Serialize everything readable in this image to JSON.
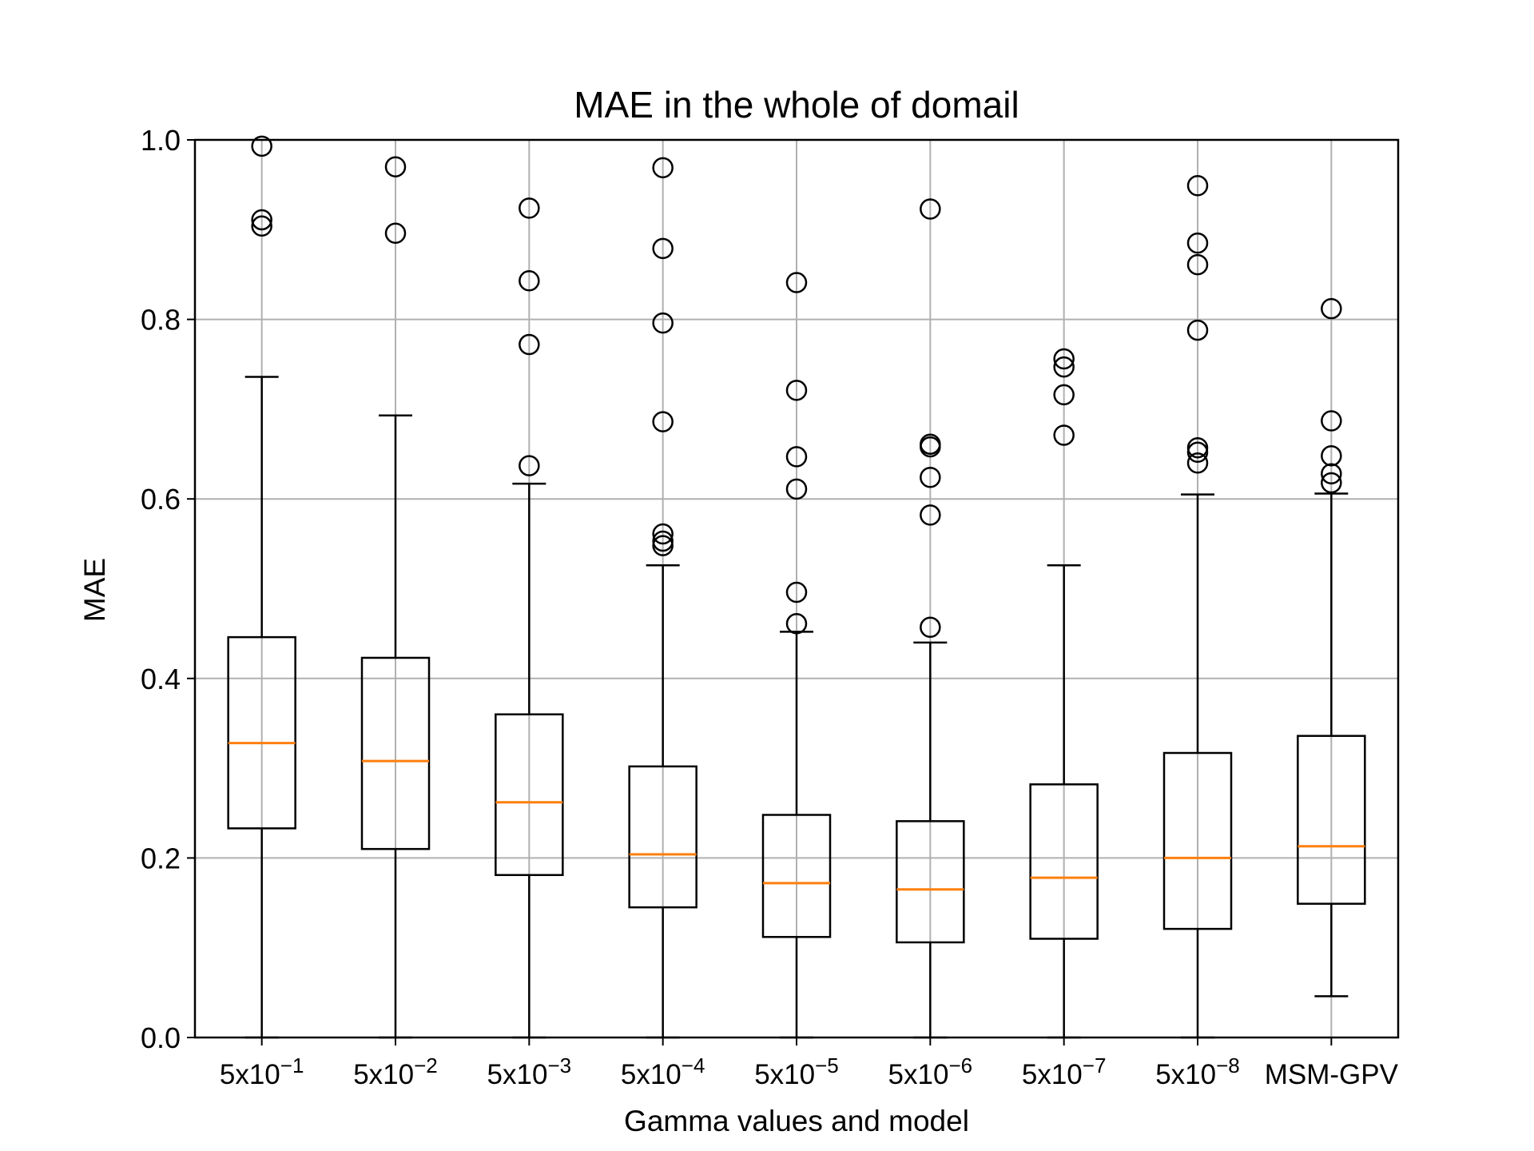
{
  "chart_data": {
    "type": "boxplot",
    "title": "MAE in the whole of domail",
    "xlabel": "Gamma values and model",
    "ylabel": "MAE",
    "ylim": [
      0.0,
      1.0
    ],
    "yticks": [
      "0.0",
      "0.2",
      "0.4",
      "0.6",
      "0.8",
      "1.0"
    ],
    "grid": true,
    "colors": {
      "box": "#000000",
      "median": "#ff7f0e",
      "grid": "#b0b0b0"
    },
    "categories": [
      {
        "base": "5x10",
        "exp": "−1",
        "label": "5x10^−1"
      },
      {
        "base": "5x10",
        "exp": "−2",
        "label": "5x10^−2"
      },
      {
        "base": "5x10",
        "exp": "−3",
        "label": "5x10^−3"
      },
      {
        "base": "5x10",
        "exp": "−4",
        "label": "5x10^−4"
      },
      {
        "base": "5x10",
        "exp": "−5",
        "label": "5x10^−5"
      },
      {
        "base": "5x10",
        "exp": "−6",
        "label": "5x10^−6"
      },
      {
        "base": "5x10",
        "exp": "−7",
        "label": "5x10^−7"
      },
      {
        "base": "5x10",
        "exp": "−8",
        "label": "5x10^−8"
      },
      {
        "base": "MSM-GPV",
        "exp": "",
        "label": "MSM-GPV"
      }
    ],
    "boxes": [
      {
        "whisker_low": 0.0,
        "q1": 0.233,
        "median": 0.328,
        "q3": 0.446,
        "whisker_high": 0.736,
        "outliers": [
          0.993,
          0.911,
          0.904
        ]
      },
      {
        "whisker_low": 0.0,
        "q1": 0.21,
        "median": 0.308,
        "q3": 0.423,
        "whisker_high": 0.693,
        "outliers": [
          0.97,
          0.896
        ]
      },
      {
        "whisker_low": 0.0,
        "q1": 0.181,
        "median": 0.262,
        "q3": 0.36,
        "whisker_high": 0.617,
        "outliers": [
          0.924,
          0.843,
          0.772,
          0.637
        ]
      },
      {
        "whisker_low": 0.0,
        "q1": 0.145,
        "median": 0.204,
        "q3": 0.302,
        "whisker_high": 0.526,
        "outliers": [
          0.969,
          0.879,
          0.796,
          0.686,
          0.561,
          0.553,
          0.548
        ]
      },
      {
        "whisker_low": 0.0,
        "q1": 0.112,
        "median": 0.172,
        "q3": 0.248,
        "whisker_high": 0.452,
        "outliers": [
          0.841,
          0.721,
          0.647,
          0.611,
          0.496,
          0.461
        ]
      },
      {
        "whisker_low": 0.0,
        "q1": 0.106,
        "median": 0.165,
        "q3": 0.241,
        "whisker_high": 0.44,
        "outliers": [
          0.923,
          0.661,
          0.658,
          0.624,
          0.582,
          0.457
        ]
      },
      {
        "whisker_low": 0.0,
        "q1": 0.11,
        "median": 0.178,
        "q3": 0.282,
        "whisker_high": 0.526,
        "outliers": [
          0.756,
          0.747,
          0.716,
          0.671
        ]
      },
      {
        "whisker_low": 0.0,
        "q1": 0.121,
        "median": 0.2,
        "q3": 0.317,
        "whisker_high": 0.605,
        "outliers": [
          0.949,
          0.885,
          0.861,
          0.788,
          0.657,
          0.652,
          0.64
        ]
      },
      {
        "whisker_low": 0.046,
        "q1": 0.149,
        "median": 0.213,
        "q3": 0.336,
        "whisker_high": 0.606,
        "outliers": [
          0.812,
          0.687,
          0.648,
          0.628,
          0.618
        ]
      }
    ]
  }
}
